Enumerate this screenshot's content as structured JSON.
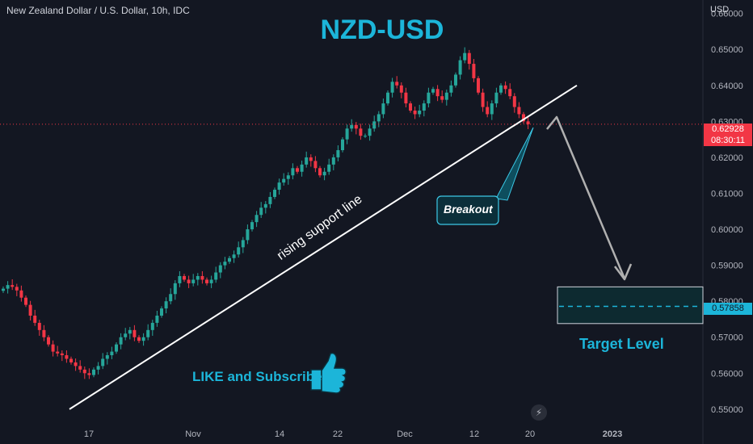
{
  "header": {
    "symbol_title": "New Zealand Dollar / U.S. Dollar, 10h, IDC",
    "currency": "USD"
  },
  "annotations": {
    "main_title": "NZD-USD",
    "support_line_label": "rising support line",
    "breakout_label": "Breakout",
    "cta_label": "LIKE and Subscribe",
    "target_label": "Target Level"
  },
  "price_badges": {
    "last_price": "0.62928",
    "countdown": "08:30:11",
    "target_price": "0.57858"
  },
  "colors": {
    "background": "#131722",
    "bullish": "#26a69a",
    "bearish": "#f23645",
    "accent": "#1cb5d9",
    "target_box": "#0d2a30",
    "axis_text": "#b2b5be"
  },
  "chart_data": {
    "type": "candlestick",
    "ylim": [
      0.5475,
      0.6615
    ],
    "y_ticks": [
      "0.66000",
      "0.65000",
      "0.64000",
      "0.63000",
      "0.62000",
      "0.61000",
      "0.60000",
      "0.59000",
      "0.58000",
      "0.57000",
      "0.56000",
      "0.55000"
    ],
    "x_ticks": [
      "17",
      "Nov",
      "14",
      "22",
      "Dec",
      "12",
      "20",
      "2023"
    ],
    "series": [
      {
        "values": [
          0.5835,
          0.5845,
          0.584,
          0.583,
          0.581,
          0.579,
          0.576,
          0.574,
          0.572,
          0.57,
          0.568,
          0.566,
          0.5655,
          0.565,
          0.564,
          0.563,
          0.562,
          0.561,
          0.56,
          0.5595,
          0.561,
          0.562,
          0.564,
          0.565,
          0.566,
          0.568,
          0.57,
          0.571,
          0.572,
          0.57,
          0.569,
          0.57,
          0.572,
          0.574,
          0.576,
          0.578,
          0.58,
          0.582,
          0.585,
          0.587,
          0.586,
          0.585,
          0.586,
          0.587,
          0.586,
          0.585,
          0.586,
          0.588,
          0.59,
          0.591,
          0.592,
          0.593,
          0.595,
          0.597,
          0.6,
          0.602,
          0.604,
          0.606,
          0.607,
          0.609,
          0.611,
          0.613,
          0.614,
          0.615,
          0.617,
          0.616,
          0.618,
          0.62,
          0.619,
          0.617,
          0.615,
          0.616,
          0.618,
          0.62,
          0.622,
          0.625,
          0.628,
          0.629,
          0.628,
          0.626,
          0.626,
          0.628,
          0.63,
          0.632,
          0.635,
          0.638,
          0.641,
          0.64,
          0.638,
          0.635,
          0.633,
          0.632,
          0.633,
          0.635,
          0.638,
          0.639,
          0.637,
          0.636,
          0.638,
          0.64,
          0.643,
          0.647,
          0.649,
          0.646,
          0.642,
          0.638,
          0.634,
          0.632,
          0.635,
          0.638,
          0.64,
          0.639,
          0.637,
          0.634,
          0.632,
          0.63,
          0.6292
        ]
      },
      {
        "name": "support_line",
        "values": [
          0.55,
          0.64
        ]
      },
      {
        "name": "target_zone",
        "values": [
          0.5738,
          0.584
        ]
      },
      {
        "name": "target_level",
        "values": [
          0.57858
        ]
      }
    ]
  }
}
